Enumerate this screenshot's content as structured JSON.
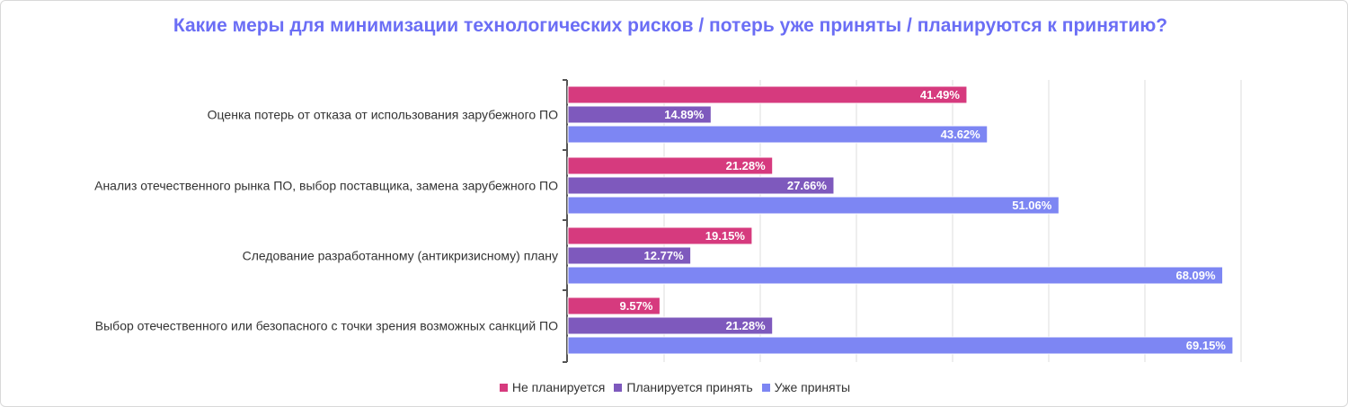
{
  "chart_data": {
    "type": "bar",
    "orientation": "horizontal",
    "title": "Какие меры для минимизации технологических рисков / потерь уже приняты / планируются к принятию?",
    "categories": [
      "Оценка потерь от отказа от использования зарубежного ПО",
      "Анализ отечественного рынка ПО, выбор поставщика, замена зарубежного ПО",
      "Следование разработанному (антикризисному) плану",
      "Выбор отечественного или безопасного с точки зрения возможных санкций ПО"
    ],
    "series": [
      {
        "name": "Не планируется",
        "color": "#d63a7e",
        "values": [
          41.49,
          21.28,
          19.15,
          9.57
        ]
      },
      {
        "name": "Планируется принять",
        "color": "#7e59bd",
        "values": [
          14.89,
          27.66,
          12.77,
          21.28
        ]
      },
      {
        "name": "Уже приняты",
        "color": "#7d86f3",
        "values": [
          43.62,
          51.06,
          68.09,
          69.15
        ]
      }
    ],
    "value_suffix": "%",
    "xlim": [
      0,
      70
    ],
    "grid": true,
    "legend_position": "bottom"
  }
}
